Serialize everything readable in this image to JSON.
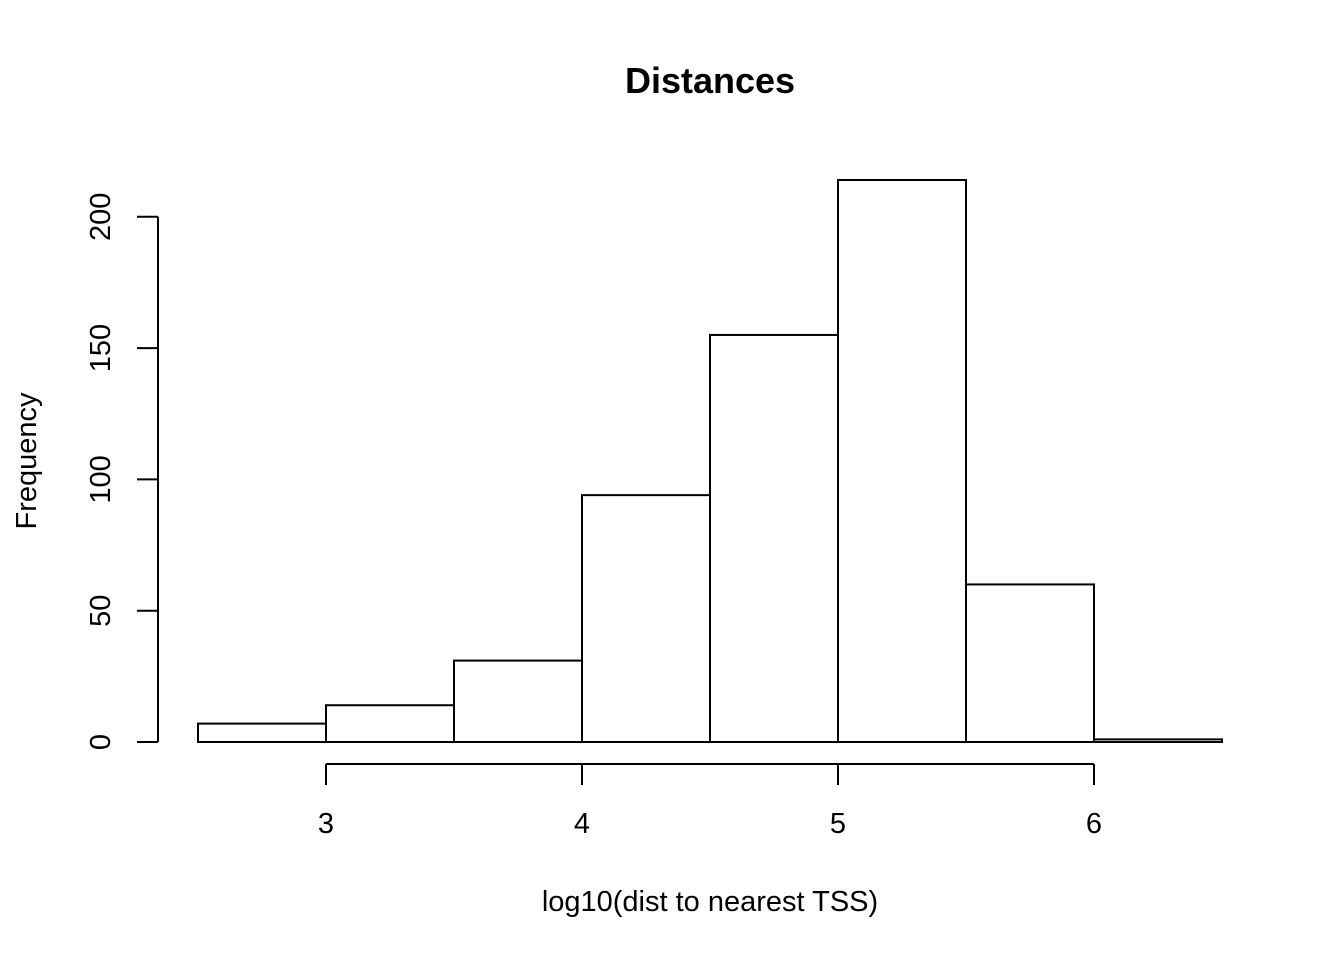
{
  "chart_data": {
    "type": "bar",
    "title": "Distances",
    "xlabel": "log10(dist to nearest TSS)",
    "ylabel": "Frequency",
    "bin_edges": [
      2.5,
      3.0,
      3.5,
      4.0,
      4.5,
      5.0,
      5.5,
      6.0,
      6.5
    ],
    "values": [
      7,
      14,
      31,
      94,
      155,
      214,
      60,
      1
    ],
    "xlim": [
      2.5,
      6.5
    ],
    "ylim": [
      0,
      214
    ],
    "x_ticks": [
      3,
      4,
      5,
      6
    ],
    "x_tick_labels": [
      "3",
      "4",
      "5",
      "6"
    ],
    "y_ticks": [
      0,
      50,
      100,
      150,
      200
    ],
    "y_tick_labels": [
      "0",
      "50",
      "100",
      "150",
      "200"
    ],
    "grid": false,
    "legend": "none",
    "colors": {
      "bar_fill": "#ffffff",
      "bar_stroke": "#000000",
      "axis": "#000000"
    }
  }
}
